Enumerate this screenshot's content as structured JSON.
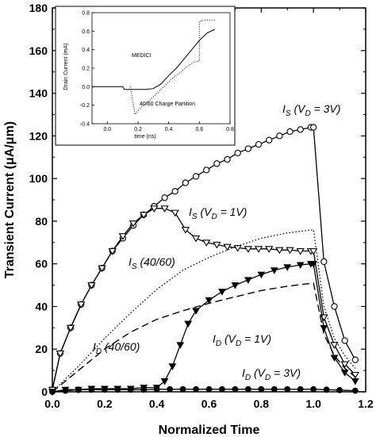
{
  "chart_data": [
    {
      "type": "line",
      "title": "",
      "xlabel": "Normalized Time",
      "ylabel": "Transient Current (μA/μm)",
      "xlim": [
        0,
        1.2
      ],
      "ylim": [
        0,
        180
      ],
      "xticks": [
        "0.0",
        "0.2",
        "0.4",
        "0.6",
        "0.8",
        "1.0",
        "1.2"
      ],
      "yticks": [
        "0",
        "20",
        "40",
        "60",
        "80",
        "100",
        "120",
        "140",
        "160",
        "180"
      ],
      "grid": false,
      "series": [
        {
          "name": "I_S (V_D = 3V)",
          "style": "solid-open-circles",
          "x": [
            0.0,
            0.03,
            0.07,
            0.11,
            0.15,
            0.19,
            0.23,
            0.27,
            0.31,
            0.35,
            0.39,
            0.43,
            0.47,
            0.51,
            0.55,
            0.59,
            0.63,
            0.67,
            0.71,
            0.75,
            0.79,
            0.83,
            0.87,
            0.91,
            0.95,
            0.99,
            1.0,
            1.04,
            1.08,
            1.12,
            1.16
          ],
          "y": [
            1,
            18,
            30,
            41,
            50,
            58,
            66,
            72,
            78,
            83,
            87,
            91,
            94,
            98,
            101,
            104,
            107,
            109,
            112,
            114,
            116,
            118,
            120,
            122,
            123,
            124,
            124,
            61,
            40,
            24,
            15
          ]
        },
        {
          "name": "I_S (V_D = 1V)",
          "style": "solid-open-triangles",
          "x": [
            0.0,
            0.03,
            0.07,
            0.11,
            0.15,
            0.19,
            0.23,
            0.27,
            0.31,
            0.35,
            0.39,
            0.43,
            0.47,
            0.51,
            0.55,
            0.59,
            0.63,
            0.67,
            0.71,
            0.75,
            0.79,
            0.83,
            0.87,
            0.91,
            0.95,
            0.99,
            1.0,
            1.04,
            1.08,
            1.12,
            1.16
          ],
          "y": [
            1,
            18,
            30,
            41,
            50,
            58,
            66,
            73,
            79,
            83,
            86,
            86,
            84,
            76,
            72,
            70,
            69,
            68,
            67.5,
            67,
            67,
            67,
            66.5,
            66.5,
            66,
            66,
            66,
            35,
            22,
            13,
            8
          ]
        },
        {
          "name": "I_S (40/60)",
          "style": "dotted",
          "x": [
            0.0,
            0.1,
            0.2,
            0.3,
            0.4,
            0.5,
            0.6,
            0.7,
            0.8,
            0.9,
            1.0,
            1.04,
            1.08,
            1.12,
            1.16
          ],
          "y": [
            0,
            12,
            25,
            37,
            48,
            57,
            63,
            68,
            72,
            74.5,
            76,
            40,
            25,
            17,
            11
          ]
        },
        {
          "name": "I_D (40/60)",
          "style": "dashed",
          "x": [
            0.0,
            0.1,
            0.2,
            0.3,
            0.4,
            0.5,
            0.6,
            0.7,
            0.8,
            0.9,
            1.0,
            1.04,
            1.08,
            1.12,
            1.16
          ],
          "y": [
            0,
            10,
            20,
            28,
            34,
            38,
            41.5,
            44.5,
            47.5,
            49.5,
            51,
            27,
            17,
            11,
            7
          ]
        },
        {
          "name": "I_D (V_D = 1V)",
          "style": "solid-filled-triangles",
          "x": [
            0.0,
            0.05,
            0.1,
            0.15,
            0.2,
            0.25,
            0.3,
            0.35,
            0.4,
            0.43,
            0.46,
            0.49,
            0.52,
            0.55,
            0.6,
            0.65,
            0.7,
            0.75,
            0.8,
            0.85,
            0.9,
            0.95,
            0.99,
            1.0,
            1.04,
            1.08,
            1.12,
            1.16
          ],
          "y": [
            0,
            1,
            1,
            1.5,
            1.5,
            1.5,
            1.5,
            2,
            2,
            5,
            12,
            22,
            32,
            38,
            43,
            47,
            50,
            52.5,
            55,
            57,
            58.5,
            59.5,
            60,
            60,
            30,
            16,
            9,
            5
          ]
        },
        {
          "name": "I_D (V_D = 3V)",
          "style": "solid-filled-circles",
          "x": [
            0.0,
            0.05,
            0.1,
            0.15,
            0.2,
            0.25,
            0.3,
            0.35,
            0.4,
            0.45,
            0.5,
            0.55,
            0.6,
            0.65,
            0.7,
            0.75,
            0.8,
            0.85,
            0.9,
            0.95,
            1.0,
            1.05,
            1.1,
            1.16
          ],
          "y": [
            0,
            0.5,
            1,
            1,
            1,
            1,
            1,
            1,
            1.2,
            1.2,
            1.2,
            1.2,
            1.2,
            1.2,
            1.2,
            1.2,
            1.2,
            1.2,
            1.2,
            1.2,
            1.2,
            1,
            0.8,
            0.5
          ]
        }
      ],
      "annotations": [
        {
          "label": "I_S (V_D = 3V)",
          "sub": [
            "S",
            "D"
          ],
          "parts": [
            "I",
            "S",
            " (V",
            "D",
            " = 3V)"
          ]
        },
        {
          "label": "I_S (V_D = 1V)",
          "parts": [
            "I",
            "S",
            " (V",
            "D",
            " = 1V)"
          ]
        },
        {
          "label": "I_S (40/60)",
          "parts": [
            "I",
            "S",
            " (40/60)"
          ]
        },
        {
          "label": "I_D (40/60)",
          "parts": [
            "I",
            "D",
            " (40/60)"
          ]
        },
        {
          "label": "I_D (V_D = 1V)",
          "parts": [
            "I",
            "D",
            " (V",
            "D",
            " = 1V)"
          ]
        },
        {
          "label": "I_D (V_D = 3V)",
          "parts": [
            "I",
            "D",
            " (V",
            "D",
            " = 3V)"
          ]
        }
      ]
    },
    {
      "type": "line",
      "title": "",
      "xlabel": "time (ns)",
      "ylabel": "Drain Current (mA)",
      "xlim": [
        -0.1,
        0.8
      ],
      "ylim": [
        -0.4,
        0.8
      ],
      "xticks": [
        "0.0",
        "0.2",
        "0.4",
        "0.6",
        "0.8"
      ],
      "yticks": [
        "-0.4",
        "-0.2",
        "0.0",
        "0.2",
        "0.4",
        "0.6",
        "0.8"
      ],
      "series": [
        {
          "name": "MEDICI",
          "style": "solid",
          "x": [
            -0.1,
            0.1,
            0.11,
            0.15,
            0.2,
            0.25,
            0.3,
            0.35,
            0.4,
            0.45,
            0.5,
            0.55,
            0.6,
            0.65,
            0.7
          ],
          "y": [
            0.0,
            0.0,
            -0.03,
            -0.03,
            -0.03,
            -0.03,
            -0.02,
            0.03,
            0.12,
            0.2,
            0.3,
            0.4,
            0.5,
            0.58,
            0.62
          ]
        },
        {
          "name": "40/60 Charge Partition",
          "style": "dotted",
          "x": [
            0.15,
            0.18,
            0.22,
            0.28,
            0.33,
            0.38,
            0.43,
            0.48,
            0.52,
            0.56,
            0.6,
            0.6,
            0.62,
            0.7
          ],
          "y": [
            0.0,
            -0.3,
            -0.22,
            -0.14,
            -0.06,
            0.02,
            0.1,
            0.16,
            0.22,
            0.26,
            0.28,
            0.7,
            0.72,
            0.72
          ]
        }
      ],
      "annotations": [
        {
          "label": "MEDICI"
        },
        {
          "label": "40/60 Charge Partition"
        }
      ]
    }
  ]
}
